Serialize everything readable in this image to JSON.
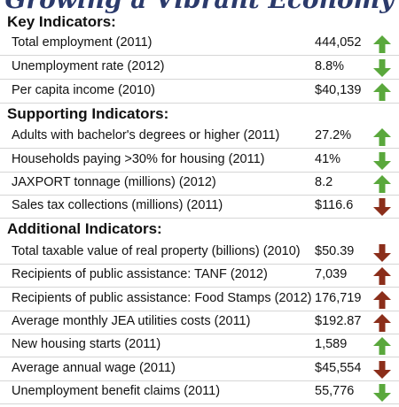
{
  "title": "Growing a Vibrant Economy",
  "colors": {
    "up_good": "#5aa83c",
    "down_good": "#5aa83c",
    "down_bad": "#8b2e1a",
    "up_bad": "#8b2e1a",
    "title": "#2b3a6b"
  },
  "sections": [
    {
      "heading": "Key Indicators:",
      "rows": [
        {
          "label": "Total employment (2011)",
          "value": "444,052",
          "arrow": "up",
          "arrow_color": "green"
        },
        {
          "label": "Unemployment rate (2012)",
          "value": "8.8%",
          "arrow": "down",
          "arrow_color": "green"
        },
        {
          "label": "Per capita income (2010)",
          "value": "$40,139",
          "arrow": "up",
          "arrow_color": "green"
        }
      ]
    },
    {
      "heading": "Supporting Indicators:",
      "rows": [
        {
          "label": "Adults with bachelor's degrees or higher (2011)",
          "value": "27.2%",
          "arrow": "up",
          "arrow_color": "green"
        },
        {
          "label": "Households paying >30% for housing (2011)",
          "value": "41%",
          "arrow": "down",
          "arrow_color": "green"
        },
        {
          "label": "JAXPORT tonnage (millions) (2012)",
          "value": "8.2",
          "arrow": "up",
          "arrow_color": "green"
        },
        {
          "label": "Sales tax collections (millions) (2011)",
          "value": "$116.6",
          "arrow": "down",
          "arrow_color": "red"
        }
      ]
    },
    {
      "heading": "Additional Indicators:",
      "rows": [
        {
          "label": "Total taxable value of real property (billions) (2010)",
          "value": "$50.39",
          "arrow": "down",
          "arrow_color": "red"
        },
        {
          "label": "Recipients of public assistance: TANF (2012)",
          "value": "7,039",
          "arrow": "up",
          "arrow_color": "red"
        },
        {
          "label": "Recipients of public assistance: Food Stamps (2012)",
          "value": "176,719",
          "arrow": "up",
          "arrow_color": "red"
        },
        {
          "label": "Average monthly JEA utilities costs (2011)",
          "value": "$192.87",
          "arrow": "up",
          "arrow_color": "red"
        },
        {
          "label": "New housing starts (2011)",
          "value": "1,589",
          "arrow": "up",
          "arrow_color": "green"
        },
        {
          "label": "Average annual wage (2011)",
          "value": "$45,554",
          "arrow": "down",
          "arrow_color": "red"
        },
        {
          "label": "Unemployment benefit claims (2011)",
          "value": "55,776",
          "arrow": "down",
          "arrow_color": "green"
        }
      ]
    }
  ]
}
